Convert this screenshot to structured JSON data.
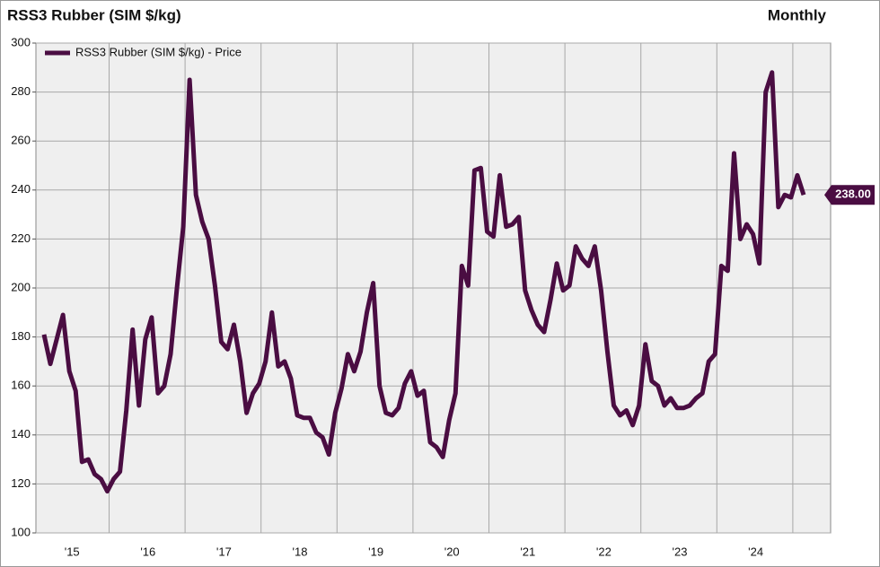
{
  "chart_data": {
    "type": "line",
    "title": "RSS3 Rubber (SIM $/kg)",
    "frequency": "Monthly",
    "categories": [
      null,
      null,
      null,
      null,
      "'15",
      null,
      null,
      null,
      null,
      null,
      null,
      null,
      null,
      null,
      null,
      null,
      "'16",
      null,
      null,
      null,
      null,
      null,
      null,
      null,
      null,
      null,
      null,
      null,
      "'17",
      null,
      null,
      null,
      null,
      null,
      null,
      null,
      null,
      null,
      null,
      null,
      "'18",
      null,
      null,
      null,
      null,
      null,
      null,
      null,
      null,
      null,
      null,
      null,
      "'19",
      null,
      null,
      null,
      null,
      null,
      null,
      null,
      null,
      null,
      null,
      null,
      "'20",
      null,
      null,
      null,
      null,
      null,
      null,
      null,
      null,
      null,
      null,
      null,
      "'21",
      null,
      null,
      null,
      null,
      null,
      null,
      null,
      null,
      null,
      null,
      null,
      "'22",
      null,
      null,
      null,
      null,
      null,
      null,
      null,
      null,
      null,
      null,
      null,
      "'23",
      null,
      null,
      null,
      null,
      null,
      null,
      null,
      null,
      null,
      null,
      null,
      "'24",
      null,
      null,
      null,
      null,
      null,
      null,
      null,
      null
    ],
    "series": [
      {
        "name": "RSS3 Rubber (SIM $/kg) - Price",
        "color": "#4a0d42",
        "values": [
          181,
          169,
          179,
          189,
          166,
          158,
          129,
          130,
          124,
          122,
          117,
          122,
          125,
          150,
          183,
          152,
          179,
          188,
          157,
          160,
          173,
          200,
          225,
          285,
          238,
          227,
          220,
          201,
          178,
          175,
          185,
          170,
          149,
          157,
          161,
          170,
          190,
          168,
          170,
          163,
          148,
          147,
          147,
          141,
          139,
          132,
          149,
          159,
          173,
          166,
          174,
          190,
          202,
          160,
          149,
          148,
          151,
          161,
          166,
          156,
          158,
          137,
          135,
          131,
          146,
          157,
          209,
          201,
          248,
          249,
          223,
          221,
          246,
          225,
          226,
          229,
          199,
          191,
          185,
          182,
          195,
          210,
          199,
          201,
          217,
          212,
          209,
          217,
          199,
          174,
          152,
          148,
          150,
          144,
          152,
          177,
          162,
          160,
          152,
          155,
          151,
          151,
          152,
          155,
          157,
          170,
          173,
          209,
          207,
          255,
          220,
          226,
          222,
          210,
          280,
          288,
          233,
          238,
          237,
          246,
          238
        ]
      }
    ],
    "last_value_label": "238.00",
    "ylim": [
      100,
      300
    ],
    "yticks": [
      100,
      120,
      140,
      160,
      180,
      200,
      220,
      240,
      260,
      280,
      300
    ],
    "grid": true,
    "legend": "upper left"
  }
}
